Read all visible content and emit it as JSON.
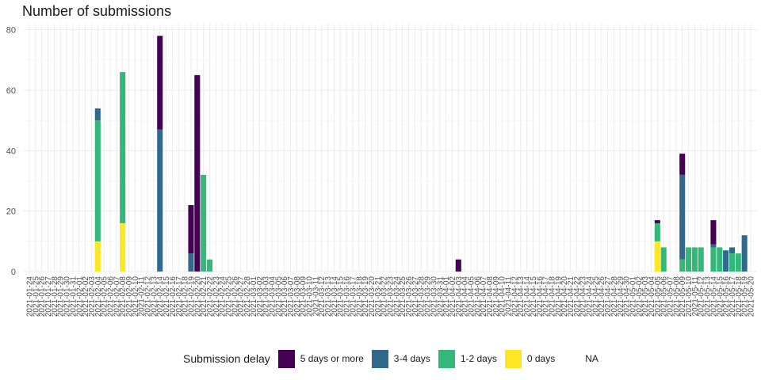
{
  "chart_data": {
    "type": "bar",
    "stacked": true,
    "title": "Number of submissions",
    "xlabel": "",
    "ylabel": "",
    "ylim": [
      0,
      82
    ],
    "yticks": [
      0,
      20,
      40,
      60,
      80
    ],
    "grid": true,
    "legend_position": "bottom",
    "legend_title": "Submission delay",
    "x_start": "2021-01-24",
    "x_end": "2021-05-20",
    "x_label_format": "YYYY-MM-DD, one label per day, rotated vertical",
    "series": [
      {
        "name": "5 days or more",
        "color": "#440154"
      },
      {
        "name": "3-4 days",
        "color": "#31688E"
      },
      {
        "name": "1-2 days",
        "color": "#35B779"
      },
      {
        "name": "0 days",
        "color": "#FDE725"
      },
      {
        "name": "NA",
        "color": ""
      }
    ],
    "bars": [
      {
        "date": "2021-02-04",
        "0 days": 10,
        "1-2 days": 40,
        "3-4 days": 4,
        "5 days or more": 0
      },
      {
        "date": "2021-02-08",
        "0 days": 16,
        "1-2 days": 50,
        "3-4 days": 0,
        "5 days or more": 0
      },
      {
        "date": "2021-02-14",
        "0 days": 0,
        "1-2 days": 0,
        "3-4 days": 47,
        "5 days or more": 31
      },
      {
        "date": "2021-02-19",
        "0 days": 0,
        "1-2 days": 0,
        "3-4 days": 6,
        "5 days or more": 16
      },
      {
        "date": "2021-02-20",
        "0 days": 0,
        "1-2 days": 0,
        "3-4 days": 0,
        "5 days or more": 65
      },
      {
        "date": "2021-02-21",
        "0 days": 0,
        "1-2 days": 32,
        "3-4 days": 0,
        "5 days or more": 0
      },
      {
        "date": "2021-02-22",
        "0 days": 0,
        "1-2 days": 4,
        "3-4 days": 0,
        "5 days or more": 0
      },
      {
        "date": "2021-04-03",
        "0 days": 0,
        "1-2 days": 0,
        "3-4 days": 0,
        "5 days or more": 4
      },
      {
        "date": "2021-05-05",
        "0 days": 10,
        "1-2 days": 6,
        "3-4 days": 0,
        "5 days or more": 1
      },
      {
        "date": "2021-05-06",
        "0 days": 0,
        "1-2 days": 8,
        "3-4 days": 0,
        "5 days or more": 0
      },
      {
        "date": "2021-05-09",
        "0 days": 0,
        "1-2 days": 4,
        "3-4 days": 28,
        "5 days or more": 7
      },
      {
        "date": "2021-05-10",
        "0 days": 0,
        "1-2 days": 8,
        "3-4 days": 0,
        "5 days or more": 0
      },
      {
        "date": "2021-05-11",
        "0 days": 0,
        "1-2 days": 8,
        "3-4 days": 0,
        "5 days or more": 0
      },
      {
        "date": "2021-05-12",
        "0 days": 0,
        "1-2 days": 8,
        "3-4 days": 0,
        "5 days or more": 0
      },
      {
        "date": "2021-05-14",
        "0 days": 0,
        "1-2 days": 8,
        "3-4 days": 1,
        "5 days or more": 8
      },
      {
        "date": "2021-05-15",
        "0 days": 0,
        "1-2 days": 8,
        "3-4 days": 0,
        "5 days or more": 0
      },
      {
        "date": "2021-05-16",
        "0 days": 0,
        "1-2 days": 0,
        "3-4 days": 7,
        "5 days or more": 0
      },
      {
        "date": "2021-05-17",
        "0 days": 0,
        "1-2 days": 6,
        "3-4 days": 2,
        "5 days or more": 0
      },
      {
        "date": "2021-05-18",
        "0 days": 0,
        "1-2 days": 6,
        "3-4 days": 0,
        "5 days or more": 0
      },
      {
        "date": "2021-05-19",
        "0 days": 0,
        "1-2 days": 0,
        "3-4 days": 12,
        "5 days or more": 0
      }
    ]
  }
}
